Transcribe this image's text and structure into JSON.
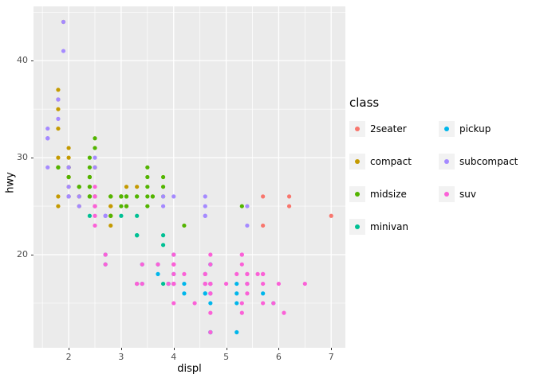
{
  "chart_data": {
    "type": "scatter",
    "title": "",
    "xlabel": "displ",
    "ylabel": "hwy",
    "xlim": [
      1.33,
      7.27
    ],
    "ylim": [
      10.4,
      45.6
    ],
    "x_ticks": [
      "2",
      "3",
      "4",
      "5",
      "6",
      "7"
    ],
    "x_tick_values": [
      2,
      3,
      4,
      5,
      6,
      7
    ],
    "y_ticks": [
      "20",
      "30",
      "40"
    ],
    "y_tick_values": [
      20,
      30,
      40
    ],
    "x_minor_ticks": [
      1.5,
      2.5,
      3.5,
      4.5,
      5.5,
      6.5
    ],
    "y_minor_ticks": [
      15,
      25,
      35,
      45
    ],
    "grid": true,
    "panel_background": "#EBEBEB",
    "gridline_color": "#FFFFFF",
    "legend": {
      "title": "class",
      "position": "right",
      "columns": [
        [
          "2seater",
          "compact",
          "midsize",
          "minivan"
        ],
        [
          "pickup",
          "subcompact",
          "suv"
        ]
      ]
    },
    "series": [
      {
        "name": "2seater",
        "color": "#F8766D",
        "points": [
          [
            5.7,
            26
          ],
          [
            5.7,
            23
          ],
          [
            6.2,
            26
          ],
          [
            6.2,
            25
          ],
          [
            7.0,
            24
          ]
        ]
      },
      {
        "name": "compact",
        "color": "#C49A00",
        "points": [
          [
            1.8,
            29
          ],
          [
            1.8,
            29
          ],
          [
            2.0,
            31
          ],
          [
            2.0,
            30
          ],
          [
            2.8,
            26
          ],
          [
            2.8,
            26
          ],
          [
            3.1,
            27
          ],
          [
            1.8,
            26
          ],
          [
            1.8,
            25
          ],
          [
            2.0,
            28
          ],
          [
            2.0,
            27
          ],
          [
            2.8,
            25
          ],
          [
            2.8,
            25
          ],
          [
            3.1,
            25
          ],
          [
            3.1,
            25
          ],
          [
            2.2,
            26
          ],
          [
            2.2,
            27
          ],
          [
            2.4,
            28
          ],
          [
            2.4,
            26
          ],
          [
            3.0,
            26
          ],
          [
            3.0,
            26
          ],
          [
            3.3,
            27
          ],
          [
            1.8,
            30
          ],
          [
            1.8,
            33
          ],
          [
            1.8,
            35
          ],
          [
            1.8,
            36
          ],
          [
            1.8,
            37
          ],
          [
            2.0,
            29
          ],
          [
            2.0,
            26
          ],
          [
            2.0,
            29
          ],
          [
            2.0,
            28
          ],
          [
            2.8,
            24
          ],
          [
            1.9,
            44
          ],
          [
            2.0,
            29
          ],
          [
            2.0,
            26
          ],
          [
            2.0,
            29
          ],
          [
            2.0,
            28
          ],
          [
            2.5,
            29
          ],
          [
            2.5,
            29
          ],
          [
            2.8,
            24
          ],
          [
            2.8,
            23
          ],
          [
            2.2,
            26
          ],
          [
            2.2,
            25
          ],
          [
            2.5,
            25
          ],
          [
            2.5,
            26
          ],
          [
            2.5,
            25
          ],
          [
            2.5,
            26
          ]
        ]
      },
      {
        "name": "midsize",
        "color": "#53B400",
        "points": [
          [
            2.8,
            24
          ],
          [
            3.1,
            25
          ],
          [
            4.2,
            23
          ],
          [
            2.4,
            27
          ],
          [
            2.4,
            30
          ],
          [
            3.1,
            26
          ],
          [
            3.5,
            29
          ],
          [
            3.6,
            26
          ],
          [
            2.4,
            26
          ],
          [
            2.4,
            27
          ],
          [
            2.4,
            26
          ],
          [
            2.4,
            26
          ],
          [
            3.3,
            26
          ],
          [
            3.3,
            26
          ],
          [
            2.4,
            29
          ],
          [
            2.5,
            31
          ],
          [
            2.5,
            32
          ],
          [
            3.5,
            27
          ],
          [
            3.5,
            26
          ],
          [
            3.0,
            26
          ],
          [
            3.0,
            25
          ],
          [
            3.5,
            25
          ],
          [
            3.1,
            26
          ],
          [
            3.8,
            26
          ],
          [
            3.8,
            28
          ],
          [
            3.8,
            27
          ],
          [
            5.3,
            25
          ],
          [
            2.2,
            27
          ],
          [
            2.2,
            27
          ],
          [
            2.4,
            28
          ],
          [
            2.4,
            28
          ],
          [
            3.0,
            26
          ],
          [
            3.0,
            26
          ],
          [
            3.5,
            28
          ],
          [
            1.8,
            29
          ],
          [
            1.8,
            29
          ],
          [
            2.0,
            28
          ],
          [
            2.0,
            29
          ],
          [
            2.8,
            26
          ],
          [
            2.8,
            26
          ],
          [
            3.6,
            26
          ]
        ]
      },
      {
        "name": "minivan",
        "color": "#00C094",
        "points": [
          [
            2.4,
            24
          ],
          [
            3.0,
            24
          ],
          [
            3.3,
            22
          ],
          [
            3.3,
            22
          ],
          [
            3.3,
            24
          ],
          [
            3.3,
            22
          ],
          [
            3.3,
            17
          ],
          [
            3.8,
            22
          ],
          [
            3.8,
            21
          ],
          [
            3.8,
            17
          ],
          [
            4.0,
            17
          ]
        ]
      },
      {
        "name": "pickup",
        "color": "#00B6EB",
        "points": [
          [
            3.7,
            19
          ],
          [
            3.7,
            18
          ],
          [
            3.9,
            17
          ],
          [
            3.9,
            17
          ],
          [
            4.7,
            19
          ],
          [
            4.7,
            19
          ],
          [
            4.7,
            12
          ],
          [
            5.2,
            17
          ],
          [
            5.2,
            15
          ],
          [
            4.2,
            17
          ],
          [
            4.2,
            16
          ],
          [
            4.6,
            18
          ],
          [
            4.6,
            16
          ],
          [
            4.6,
            17
          ],
          [
            4.6,
            16
          ],
          [
            5.4,
            17
          ],
          [
            4.7,
            16
          ],
          [
            4.7,
            12
          ],
          [
            4.7,
            17
          ],
          [
            4.7,
            15
          ],
          [
            4.7,
            17
          ],
          [
            4.7,
            12
          ],
          [
            5.2,
            16
          ],
          [
            5.2,
            12
          ],
          [
            5.7,
            16
          ],
          [
            5.9,
            15
          ],
          [
            2.7,
            20
          ],
          [
            2.7,
            19
          ],
          [
            3.4,
            19
          ],
          [
            3.4,
            17
          ],
          [
            4.0,
            18
          ],
          [
            4.0,
            17
          ],
          [
            4.0,
            20
          ]
        ]
      },
      {
        "name": "subcompact",
        "color": "#A58AFF",
        "points": [
          [
            1.6,
            33
          ],
          [
            1.6,
            32
          ],
          [
            1.6,
            32
          ],
          [
            1.6,
            29
          ],
          [
            1.6,
            32
          ],
          [
            1.8,
            34
          ],
          [
            1.8,
            36
          ],
          [
            1.8,
            36
          ],
          [
            2.0,
            29
          ],
          [
            3.8,
            26
          ],
          [
            3.8,
            25
          ],
          [
            4.0,
            26
          ],
          [
            4.6,
            24
          ],
          [
            4.6,
            25
          ],
          [
            4.6,
            26
          ],
          [
            4.6,
            24
          ],
          [
            5.4,
            25
          ],
          [
            5.4,
            23
          ],
          [
            1.9,
            44
          ],
          [
            1.9,
            41
          ],
          [
            2.0,
            29
          ],
          [
            2.0,
            26
          ],
          [
            2.5,
            30
          ],
          [
            2.5,
            29
          ],
          [
            2.0,
            26
          ],
          [
            2.0,
            27
          ],
          [
            2.0,
            26
          ],
          [
            2.0,
            26
          ],
          [
            2.7,
            24
          ],
          [
            2.7,
            24
          ],
          [
            2.7,
            24
          ],
          [
            2.2,
            26
          ],
          [
            2.2,
            25
          ],
          [
            2.5,
            26
          ],
          [
            2.5,
            25
          ]
        ]
      },
      {
        "name": "suv",
        "color": "#FB61D7",
        "points": [
          [
            5.3,
            20
          ],
          [
            5.3,
            15
          ],
          [
            5.3,
            20
          ],
          [
            5.7,
            17
          ],
          [
            6.0,
            17
          ],
          [
            5.3,
            19
          ],
          [
            5.3,
            14
          ],
          [
            5.7,
            15
          ],
          [
            6.5,
            17
          ],
          [
            3.9,
            17
          ],
          [
            4.7,
            17
          ],
          [
            4.7,
            12
          ],
          [
            4.7,
            17
          ],
          [
            4.7,
            16
          ],
          [
            5.2,
            18
          ],
          [
            5.9,
            15
          ],
          [
            4.6,
            17
          ],
          [
            5.4,
            17
          ],
          [
            5.4,
            18
          ],
          [
            4.0,
            17
          ],
          [
            4.0,
            17
          ],
          [
            4.0,
            19
          ],
          [
            4.0,
            19
          ],
          [
            4.6,
            17
          ],
          [
            5.0,
            17
          ],
          [
            3.7,
            19
          ],
          [
            4.0,
            17
          ],
          [
            4.7,
            19
          ],
          [
            4.7,
            17
          ],
          [
            4.7,
            14
          ],
          [
            4.7,
            17
          ],
          [
            5.7,
            18
          ],
          [
            6.1,
            14
          ],
          [
            4.0,
            15
          ],
          [
            4.2,
            18
          ],
          [
            4.4,
            15
          ],
          [
            4.6,
            18
          ],
          [
            5.4,
            17
          ],
          [
            5.4,
            16
          ],
          [
            5.4,
            18
          ],
          [
            4.0,
            17
          ],
          [
            4.0,
            19
          ],
          [
            4.6,
            17
          ],
          [
            4.6,
            18
          ],
          [
            3.3,
            17
          ],
          [
            3.3,
            17
          ],
          [
            4.0,
            18
          ],
          [
            5.6,
            18
          ],
          [
            2.5,
            25
          ],
          [
            2.5,
            24
          ],
          [
            2.5,
            27
          ],
          [
            2.5,
            25
          ],
          [
            2.5,
            26
          ],
          [
            2.5,
            23
          ],
          [
            2.7,
            20
          ],
          [
            2.7,
            19
          ],
          [
            3.4,
            19
          ],
          [
            3.4,
            17
          ],
          [
            4.0,
            20
          ],
          [
            4.7,
            20
          ],
          [
            4.7,
            16
          ],
          [
            5.7,
            18
          ]
        ]
      }
    ]
  }
}
